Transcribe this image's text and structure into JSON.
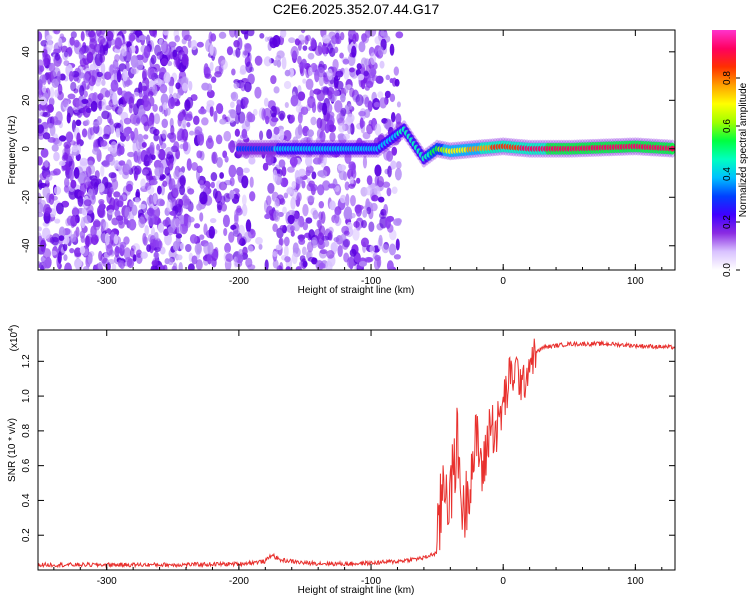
{
  "title": "C2E6.2025.352.07.44.G17",
  "colors": {
    "line": "#e8312e",
    "frame": "#000000",
    "background": "#ffffff"
  },
  "chart_data": [
    {
      "type": "heatmap",
      "title": "C2E6.2025.352.07.44.G17",
      "xlabel": "Height of straight line (km)",
      "ylabel": "Frequency (Hz)",
      "xlim": [
        -352,
        130
      ],
      "ylim": [
        -50,
        49
      ],
      "x_ticks": [
        -300,
        -200,
        -100,
        0,
        100
      ],
      "y_ticks": [
        -40,
        -20,
        0,
        20,
        40
      ],
      "grid": false,
      "signal_band": [
        {
          "x": -200,
          "y": 0,
          "amplitude": 0.3
        },
        {
          "x": -170,
          "y": 0,
          "amplitude": 0.35
        },
        {
          "x": -150,
          "y": 0,
          "amplitude": 0.4
        },
        {
          "x": -120,
          "y": 0,
          "amplitude": 0.38
        },
        {
          "x": -95,
          "y": 0,
          "amplitude": 0.35
        },
        {
          "x": -75,
          "y": 8,
          "amplitude": 0.45
        },
        {
          "x": -60,
          "y": -4,
          "amplitude": 0.45
        },
        {
          "x": -50,
          "y": 0,
          "amplitude": 0.55
        },
        {
          "x": -40,
          "y": -1,
          "amplitude": 0.7
        },
        {
          "x": -20,
          "y": 0,
          "amplitude": 0.75
        },
        {
          "x": 0,
          "y": 1,
          "amplitude": 0.85
        },
        {
          "x": 20,
          "y": 0,
          "amplitude": 0.9
        },
        {
          "x": 50,
          "y": 0,
          "amplitude": 0.92
        },
        {
          "x": 100,
          "y": 1,
          "amplitude": 0.95
        },
        {
          "x": 130,
          "y": 0,
          "amplitude": 0.95
        }
      ],
      "colorbar": {
        "label": "Normalized spectral amplitude",
        "range": [
          0,
          1
        ],
        "ticks": [
          "0.0",
          "0.2",
          "0.4",
          "0.6",
          "0.8"
        ],
        "stops": [
          "#ffffff",
          "#d9c2ff",
          "#8a2be2",
          "#3f00ff",
          "#0040ff",
          "#00c0ff",
          "#00ffc0",
          "#00ff40",
          "#a0ff00",
          "#ffff00",
          "#ffa000",
          "#ff3000",
          "#ff0060",
          "#ff33cc"
        ]
      }
    },
    {
      "type": "line",
      "xlabel": "Height of straight line (km)",
      "ylabel": "SNR (10 * v/v)",
      "y_multiplier": "(x10",
      "y_multiplier_exp": "4",
      "y_multiplier_close": ")",
      "xlim": [
        -352,
        130
      ],
      "ylim": [
        0,
        1.38
      ],
      "x_ticks": [
        -300,
        -200,
        -100,
        0,
        100
      ],
      "y_ticks": [
        "0.2",
        "0.4",
        "0.6",
        "0.8",
        "1.0",
        "1.2"
      ],
      "grid": false,
      "series": [
        {
          "x": [
            -352,
            -300,
            -250,
            -200,
            -180,
            -175,
            -170,
            -160,
            -150,
            -120,
            -100,
            -80,
            -60,
            -50,
            -45,
            -40,
            -35,
            -30,
            -25,
            -20,
            -15,
            -10,
            -5,
            0,
            5,
            10,
            15,
            20,
            25,
            30,
            40,
            50,
            60,
            80,
            100,
            130
          ],
          "y": [
            0.03,
            0.03,
            0.03,
            0.035,
            0.05,
            0.09,
            0.06,
            0.05,
            0.04,
            0.035,
            0.04,
            0.05,
            0.07,
            0.1,
            0.55,
            0.4,
            0.75,
            0.3,
            0.55,
            0.75,
            0.55,
            0.85,
            0.8,
            0.95,
            1.1,
            1.15,
            1.05,
            1.2,
            1.25,
            1.28,
            1.29,
            1.3,
            1.3,
            1.3,
            1.29,
            1.28
          ]
        }
      ]
    }
  ]
}
